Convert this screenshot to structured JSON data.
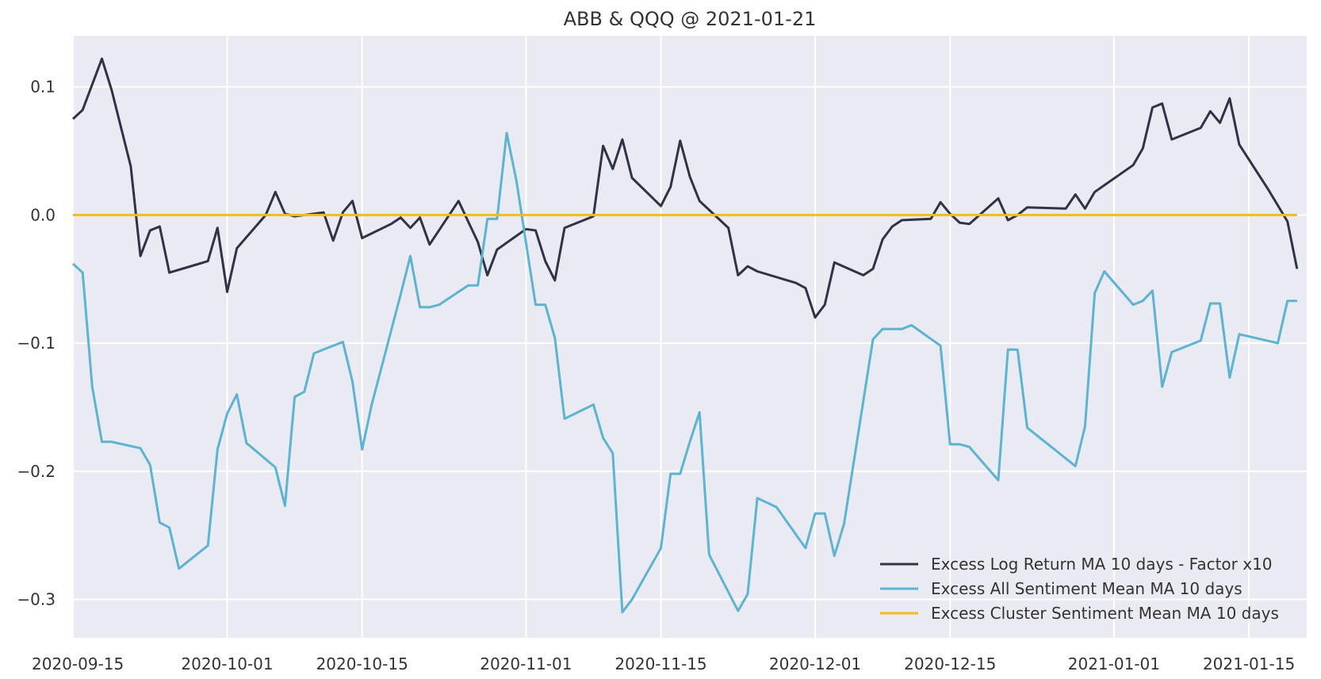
{
  "chart_data": {
    "type": "line",
    "title": "ABB & QQQ @ 2021-01-21",
    "xlabel": "",
    "ylabel": "",
    "x_axis_type": "date",
    "xlim": [
      "2020-09-15",
      "2021-01-21"
    ],
    "ylim": [
      -0.33,
      0.14
    ],
    "grid": true,
    "legend_position": "bottom-right",
    "x_ticks": [
      "2020-09-15",
      "2020-10-01",
      "2020-10-15",
      "2020-11-01",
      "2020-11-15",
      "2020-12-01",
      "2020-12-15",
      "2021-01-01",
      "2021-01-15"
    ],
    "y_ticks": [
      0.1,
      0.0,
      -0.1,
      -0.2,
      -0.3
    ],
    "y_tick_labels": [
      "0.1",
      "0.0",
      "−0.1",
      "−0.2",
      "−0.3"
    ],
    "series": [
      {
        "name": "Excess Log Return MA 10 days - Factor x10",
        "color": "#2e3446",
        "x": [
          "2020-09-15",
          "2020-09-16",
          "2020-09-18",
          "2020-09-19",
          "2020-09-21",
          "2020-09-22",
          "2020-09-23",
          "2020-09-24",
          "2020-09-25",
          "2020-09-29",
          "2020-09-30",
          "2020-10-01",
          "2020-10-02",
          "2020-10-05",
          "2020-10-06",
          "2020-10-07",
          "2020-10-08",
          "2020-10-11",
          "2020-10-12",
          "2020-10-13",
          "2020-10-14",
          "2020-10-15",
          "2020-10-18",
          "2020-10-19",
          "2020-10-20",
          "2020-10-21",
          "2020-10-22",
          "2020-10-25",
          "2020-10-26",
          "2020-10-27",
          "2020-10-28",
          "2020-10-29",
          "2020-11-01",
          "2020-11-02",
          "2020-11-03",
          "2020-11-04",
          "2020-11-05",
          "2020-11-08",
          "2020-11-09",
          "2020-11-10",
          "2020-11-11",
          "2020-11-12",
          "2020-11-15",
          "2020-11-16",
          "2020-11-17",
          "2020-11-18",
          "2020-11-19",
          "2020-11-22",
          "2020-11-23",
          "2020-11-24",
          "2020-11-25",
          "2020-11-29",
          "2020-11-30",
          "2020-12-01",
          "2020-12-02",
          "2020-12-03",
          "2020-12-06",
          "2020-12-07",
          "2020-12-08",
          "2020-12-09",
          "2020-12-10",
          "2020-12-13",
          "2020-12-14",
          "2020-12-15",
          "2020-12-16",
          "2020-12-17",
          "2020-12-20",
          "2020-12-21",
          "2020-12-22",
          "2020-12-23",
          "2020-12-27",
          "2020-12-28",
          "2020-12-29",
          "2020-12-30",
          "2021-01-03",
          "2021-01-04",
          "2021-01-05",
          "2021-01-06",
          "2021-01-07",
          "2021-01-10",
          "2021-01-11",
          "2021-01-12",
          "2021-01-13",
          "2021-01-14",
          "2021-01-17",
          "2021-01-19",
          "2021-01-20"
        ],
        "y": [
          0.075,
          0.082,
          0.122,
          0.098,
          0.038,
          -0.032,
          -0.012,
          -0.009,
          -0.045,
          -0.036,
          -0.01,
          -0.06,
          -0.026,
          0.0,
          0.018,
          0.001,
          -0.001,
          0.002,
          -0.02,
          0.002,
          0.011,
          -0.018,
          -0.007,
          -0.002,
          -0.01,
          -0.002,
          -0.023,
          0.011,
          -0.005,
          -0.021,
          -0.047,
          -0.027,
          -0.011,
          -0.012,
          -0.036,
          -0.051,
          -0.01,
          -0.001,
          0.054,
          0.036,
          0.059,
          0.029,
          0.007,
          0.022,
          0.058,
          0.03,
          0.011,
          -0.01,
          -0.047,
          -0.04,
          -0.044,
          -0.053,
          -0.057,
          -0.08,
          -0.07,
          -0.037,
          -0.047,
          -0.042,
          -0.019,
          -0.009,
          -0.004,
          -0.003,
          0.01,
          0.001,
          -0.006,
          -0.007,
          0.013,
          -0.004,
          0.0,
          0.006,
          0.005,
          0.016,
          0.005,
          0.018,
          0.039,
          0.052,
          0.084,
          0.087,
          0.059,
          0.068,
          0.081,
          0.072,
          0.091,
          0.055,
          0.02,
          -0.005,
          -0.042
        ]
      },
      {
        "name": "Excess All Sentiment Mean MA 10 days",
        "color": "#5ab4d2",
        "x": [
          "2020-09-15",
          "2020-09-16",
          "2020-09-17",
          "2020-09-18",
          "2020-09-19",
          "2020-09-22",
          "2020-09-23",
          "2020-09-24",
          "2020-09-25",
          "2020-09-26",
          "2020-09-29",
          "2020-09-30",
          "2020-10-01",
          "2020-10-02",
          "2020-10-03",
          "2020-10-06",
          "2020-10-07",
          "2020-10-08",
          "2020-10-09",
          "2020-10-10",
          "2020-10-13",
          "2020-10-14",
          "2020-10-15",
          "2020-10-16",
          "2020-10-19",
          "2020-10-20",
          "2020-10-21",
          "2020-10-22",
          "2020-10-23",
          "2020-10-26",
          "2020-10-27",
          "2020-10-28",
          "2020-10-29",
          "2020-10-30",
          "2020-10-31",
          "2020-11-02",
          "2020-11-03",
          "2020-11-04",
          "2020-11-05",
          "2020-11-08",
          "2020-11-09",
          "2020-11-10",
          "2020-11-11",
          "2020-11-12",
          "2020-11-15",
          "2020-11-16",
          "2020-11-17",
          "2020-11-18",
          "2020-11-19",
          "2020-11-20",
          "2020-11-23",
          "2020-11-24",
          "2020-11-25",
          "2020-11-27",
          "2020-11-30",
          "2020-12-01",
          "2020-12-02",
          "2020-12-03",
          "2020-12-04",
          "2020-12-07",
          "2020-12-08",
          "2020-12-09",
          "2020-12-10",
          "2020-12-11",
          "2020-12-14",
          "2020-12-15",
          "2020-12-16",
          "2020-12-17",
          "2020-12-20",
          "2020-12-21",
          "2020-12-22",
          "2020-12-23",
          "2020-12-28",
          "2020-12-29",
          "2020-12-30",
          "2020-12-31",
          "2021-01-03",
          "2021-01-04",
          "2021-01-05",
          "2021-01-06",
          "2021-01-07",
          "2021-01-10",
          "2021-01-11",
          "2021-01-12",
          "2021-01-13",
          "2021-01-14",
          "2021-01-18",
          "2021-01-19",
          "2021-01-20"
        ],
        "y": [
          -0.038,
          -0.045,
          -0.134,
          -0.177,
          -0.177,
          -0.182,
          -0.195,
          -0.24,
          -0.244,
          -0.276,
          -0.258,
          -0.183,
          -0.155,
          -0.14,
          -0.178,
          -0.197,
          -0.227,
          -0.142,
          -0.138,
          -0.108,
          -0.099,
          -0.13,
          -0.183,
          -0.148,
          -0.062,
          -0.032,
          -0.072,
          -0.072,
          -0.07,
          -0.055,
          -0.055,
          -0.003,
          -0.003,
          0.064,
          0.027,
          -0.07,
          -0.07,
          -0.096,
          -0.159,
          -0.148,
          -0.174,
          -0.186,
          -0.31,
          -0.3,
          -0.26,
          -0.202,
          -0.202,
          -0.177,
          -0.154,
          -0.265,
          -0.309,
          -0.296,
          -0.221,
          -0.228,
          -0.26,
          -0.233,
          -0.233,
          -0.266,
          -0.241,
          -0.097,
          -0.089,
          -0.089,
          -0.089,
          -0.086,
          -0.102,
          -0.179,
          -0.179,
          -0.181,
          -0.207,
          -0.105,
          -0.105,
          -0.166,
          -0.196,
          -0.165,
          -0.061,
          -0.044,
          -0.07,
          -0.067,
          -0.059,
          -0.134,
          -0.107,
          -0.098,
          -0.069,
          -0.069,
          -0.127,
          -0.093,
          -0.1,
          -0.067,
          -0.067
        ]
      },
      {
        "name": "Excess Cluster Sentiment Mean MA 10 days",
        "color": "#f0bc1e",
        "x": [
          "2020-09-15",
          "2021-01-20"
        ],
        "y": [
          0.0,
          0.0
        ]
      }
    ]
  }
}
